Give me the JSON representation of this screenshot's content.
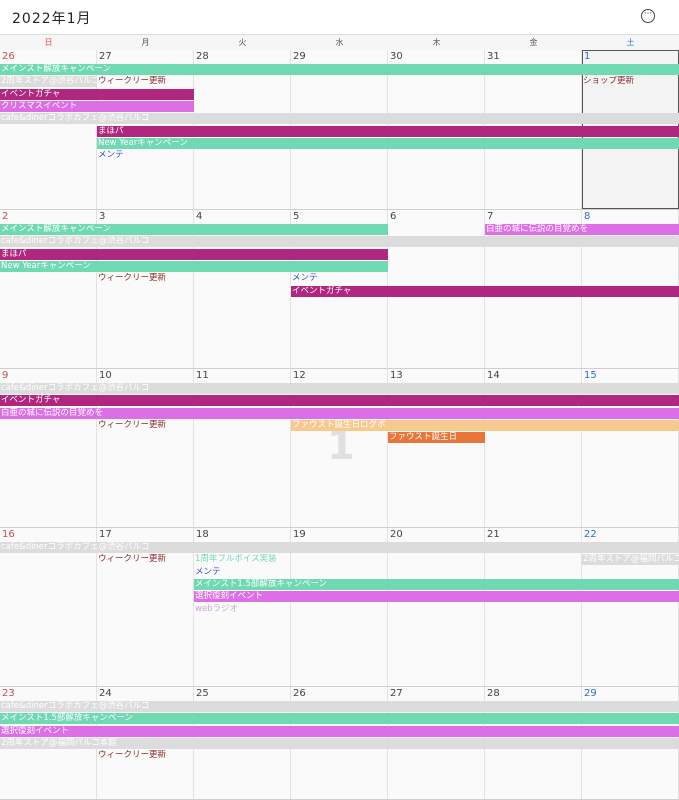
{
  "header": {
    "title": "2022年1月",
    "more_icon": "more-circle-icon",
    "more_glyph": "···"
  },
  "weekdays": [
    "日",
    "月",
    "火",
    "水",
    "木",
    "金",
    "土"
  ],
  "colors": {
    "green": "#6fd9b2",
    "magenta": "#b0277f",
    "violet": "#dc6ee6",
    "gray": "#dcdcdc",
    "peach": "#f7c98f",
    "orange": "#e8763a",
    "text_dark": "#8a2a2a",
    "text_blue": "#2f4fb8",
    "text_light": "#c8a8cf"
  },
  "weeks": [
    {
      "days": [
        "26",
        "27",
        "28",
        "29",
        "30",
        "31",
        "1"
      ],
      "events": [
        {
          "label": "メインスト解放キャンペーン",
          "start": 0,
          "span": 7,
          "row": 0,
          "style": "bar",
          "color": "green"
        },
        {
          "label": "2周年ストア@渋谷パルコ",
          "start": 0,
          "span": 1,
          "row": 1,
          "style": "bar",
          "color": "gray"
        },
        {
          "label": "ウィークリー更新",
          "start": 1,
          "span": 1,
          "row": 1,
          "style": "txt",
          "color": "text_dark"
        },
        {
          "label": "ショップ更新",
          "start": 6,
          "span": 1,
          "row": 1,
          "style": "txt",
          "color": "text_dark"
        },
        {
          "label": "イベントガチャ",
          "start": 0,
          "span": 2,
          "row": 2,
          "style": "bar",
          "color": "magenta"
        },
        {
          "label": "クリスマスイベント",
          "start": 0,
          "span": 2,
          "row": 3,
          "style": "bar",
          "color": "violet"
        },
        {
          "label": "cafe&dinerコラボカフェ@渋谷パルコ",
          "start": 0,
          "span": 7,
          "row": 4,
          "style": "bar",
          "color": "gray"
        },
        {
          "label": "まほパ",
          "start": 1,
          "span": 6,
          "row": 5,
          "style": "bar",
          "color": "magenta"
        },
        {
          "label": "New Yearキャンペーン",
          "start": 1,
          "span": 6,
          "row": 6,
          "style": "bar",
          "color": "green"
        },
        {
          "label": "メンテ",
          "start": 1,
          "span": 1,
          "row": 7,
          "style": "txt",
          "color": "text_blue"
        }
      ]
    },
    {
      "days": [
        "2",
        "3",
        "4",
        "5",
        "6",
        "7",
        "8"
      ],
      "events": [
        {
          "label": "メインスト解放キャンペーン",
          "start": 0,
          "span": 4,
          "row": 0,
          "style": "bar",
          "color": "green"
        },
        {
          "label": "白亜の城に伝説の目覚めを",
          "start": 5,
          "span": 2,
          "row": 0,
          "style": "bar",
          "color": "violet"
        },
        {
          "label": "cafe&dinerコラボカフェ@渋谷パルコ",
          "start": 0,
          "span": 7,
          "row": 1,
          "style": "bar",
          "color": "gray"
        },
        {
          "label": "まほパ",
          "start": 0,
          "span": 4,
          "row": 2,
          "style": "bar",
          "color": "magenta"
        },
        {
          "label": "New Yearキャンペーン",
          "start": 0,
          "span": 4,
          "row": 3,
          "style": "bar",
          "color": "green"
        },
        {
          "label": "ウィークリー更新",
          "start": 1,
          "span": 1,
          "row": 4,
          "style": "txt",
          "color": "text_dark"
        },
        {
          "label": "メンテ",
          "start": 3,
          "span": 1,
          "row": 4,
          "style": "txt",
          "color": "text_blue"
        },
        {
          "label": "イベントガチャ",
          "start": 3,
          "span": 4,
          "row": 5,
          "style": "bar",
          "color": "magenta"
        }
      ]
    },
    {
      "days": [
        "9",
        "10",
        "11",
        "12",
        "13",
        "14",
        "15"
      ],
      "big_day": {
        "label": "1",
        "col": 3
      },
      "events": [
        {
          "label": "cafe&dinerコラボカフェ@渋谷パルコ",
          "start": 0,
          "span": 7,
          "row": 0,
          "style": "bar",
          "color": "gray"
        },
        {
          "label": "イベントガチャ",
          "start": 0,
          "span": 7,
          "row": 1,
          "style": "bar",
          "color": "magenta"
        },
        {
          "label": "白亜の城に伝説の目覚めを",
          "start": 0,
          "span": 7,
          "row": 2,
          "style": "bar",
          "color": "violet"
        },
        {
          "label": "ウィークリー更新",
          "start": 1,
          "span": 1,
          "row": 3,
          "style": "txt",
          "color": "text_dark"
        },
        {
          "label": "ファウスト誕生日ログボ",
          "start": 3,
          "span": 4,
          "row": 3,
          "style": "bar",
          "color": "peach"
        },
        {
          "label": "ファウスト誕生日",
          "start": 4,
          "span": 1,
          "row": 4,
          "style": "bar",
          "color": "orange"
        }
      ]
    },
    {
      "days": [
        "16",
        "17",
        "18",
        "19",
        "20",
        "21",
        "22"
      ],
      "events": [
        {
          "label": "cafe&dinerコラボカフェ@渋谷パルコ",
          "start": 0,
          "span": 7,
          "row": 0,
          "style": "bar",
          "color": "gray"
        },
        {
          "label": "ウィークリー更新",
          "start": 1,
          "span": 1,
          "row": 1,
          "style": "txt",
          "color": "text_dark"
        },
        {
          "label": "1周年フルボイス実装",
          "start": 2,
          "span": 1,
          "row": 1,
          "style": "txt",
          "color": "green"
        },
        {
          "label": "2周年ストア@福岡パルコ",
          "start": 6,
          "span": 1,
          "row": 1,
          "style": "bar",
          "color": "gray"
        },
        {
          "label": "メンテ",
          "start": 2,
          "span": 1,
          "row": 2,
          "style": "txt",
          "color": "text_blue"
        },
        {
          "label": "メインスト1.5部解放キャンペーン",
          "start": 2,
          "span": 5,
          "row": 3,
          "style": "bar",
          "color": "green"
        },
        {
          "label": "選択復刻イベント",
          "start": 2,
          "span": 5,
          "row": 4,
          "style": "bar",
          "color": "violet"
        },
        {
          "label": "webラジオ",
          "start": 2,
          "span": 1,
          "row": 5,
          "style": "txt",
          "color": "text_light"
        }
      ]
    },
    {
      "days": [
        "23",
        "24",
        "25",
        "26",
        "27",
        "28",
        "29"
      ],
      "events": [
        {
          "label": "cafe&dinerコラボカフェ@渋谷パルコ",
          "start": 0,
          "span": 7,
          "row": 0,
          "style": "bar",
          "color": "gray"
        },
        {
          "label": "メインスト1.5部解放キャンペーン",
          "start": 0,
          "span": 7,
          "row": 1,
          "style": "bar",
          "color": "green"
        },
        {
          "label": "選択復刻イベント",
          "start": 0,
          "span": 7,
          "row": 2,
          "style": "bar",
          "color": "violet"
        },
        {
          "label": "2周年ストア@福岡パルコ本館",
          "start": 0,
          "span": 7,
          "row": 3,
          "style": "bar",
          "color": "gray"
        },
        {
          "label": "ウィークリー更新",
          "start": 1,
          "span": 1,
          "row": 4,
          "style": "txt",
          "color": "text_dark"
        }
      ]
    }
  ]
}
